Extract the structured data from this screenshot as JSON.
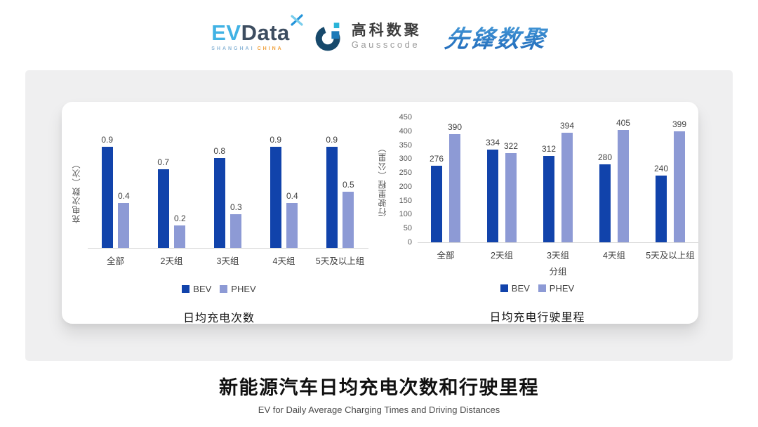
{
  "header": {
    "evdata": {
      "ev": "EV",
      "data": "Data",
      "sub_left": "SHANGHAI",
      "sub_right": "CHINA"
    },
    "gausscode": {
      "cn": "高科数聚",
      "en": "Gausscode"
    },
    "pioneer": {
      "text": "先锋数聚"
    }
  },
  "colors": {
    "bev": "#1143ab",
    "phev": "#8d9ad5",
    "evdata_blue": "#41b2e4",
    "evdata_dark": "#3d4d60",
    "evdata_orange": "#f0a23f",
    "gausscode_dark": "#17496b",
    "gausscode_blue": "#1b79b8",
    "gausscode_cyan": "#29b4d8",
    "pioneer_blue": "#2e7fd0",
    "panel_bg": "#efeff0",
    "card_bg": "#ffffff"
  },
  "chart_data": [
    {
      "type": "bar",
      "title": "日均充电次数",
      "ylabel": "充电次数（次）",
      "xlabel": "",
      "categories": [
        "全部",
        "2天组",
        "3天组",
        "4天组",
        "5天及以上组"
      ],
      "series": [
        {
          "name": "BEV",
          "color": "#1143ab",
          "values": [
            0.9,
            0.7,
            0.8,
            0.9,
            0.9
          ]
        },
        {
          "name": "PHEV",
          "color": "#8d9ad5",
          "values": [
            0.4,
            0.2,
            0.3,
            0.4,
            0.5
          ]
        }
      ],
      "ylim": [
        0,
        1
      ],
      "yticks": null,
      "grid": false,
      "data_labels": true,
      "legend_position": "bottom"
    },
    {
      "type": "bar",
      "title": "日均充电行驶里程",
      "ylabel": "行驶里程（公里）",
      "xlabel": "分组",
      "categories": [
        "全部",
        "2天组",
        "3天组",
        "4天组",
        "5天及以上组"
      ],
      "series": [
        {
          "name": "BEV",
          "color": "#1143ab",
          "values": [
            276,
            334,
            312,
            280,
            240
          ]
        },
        {
          "name": "PHEV",
          "color": "#8d9ad5",
          "values": [
            390,
            322,
            394,
            405,
            399
          ]
        }
      ],
      "ylim": [
        0,
        450
      ],
      "yticks": [
        0,
        50,
        100,
        150,
        200,
        250,
        300,
        350,
        400,
        450
      ],
      "grid": false,
      "data_labels": true,
      "legend_position": "bottom"
    }
  ],
  "footer": {
    "title": "新能源汽车日均充电次数和行驶里程",
    "subtitle": "EV for Daily Average Charging Times and Driving Distances"
  }
}
